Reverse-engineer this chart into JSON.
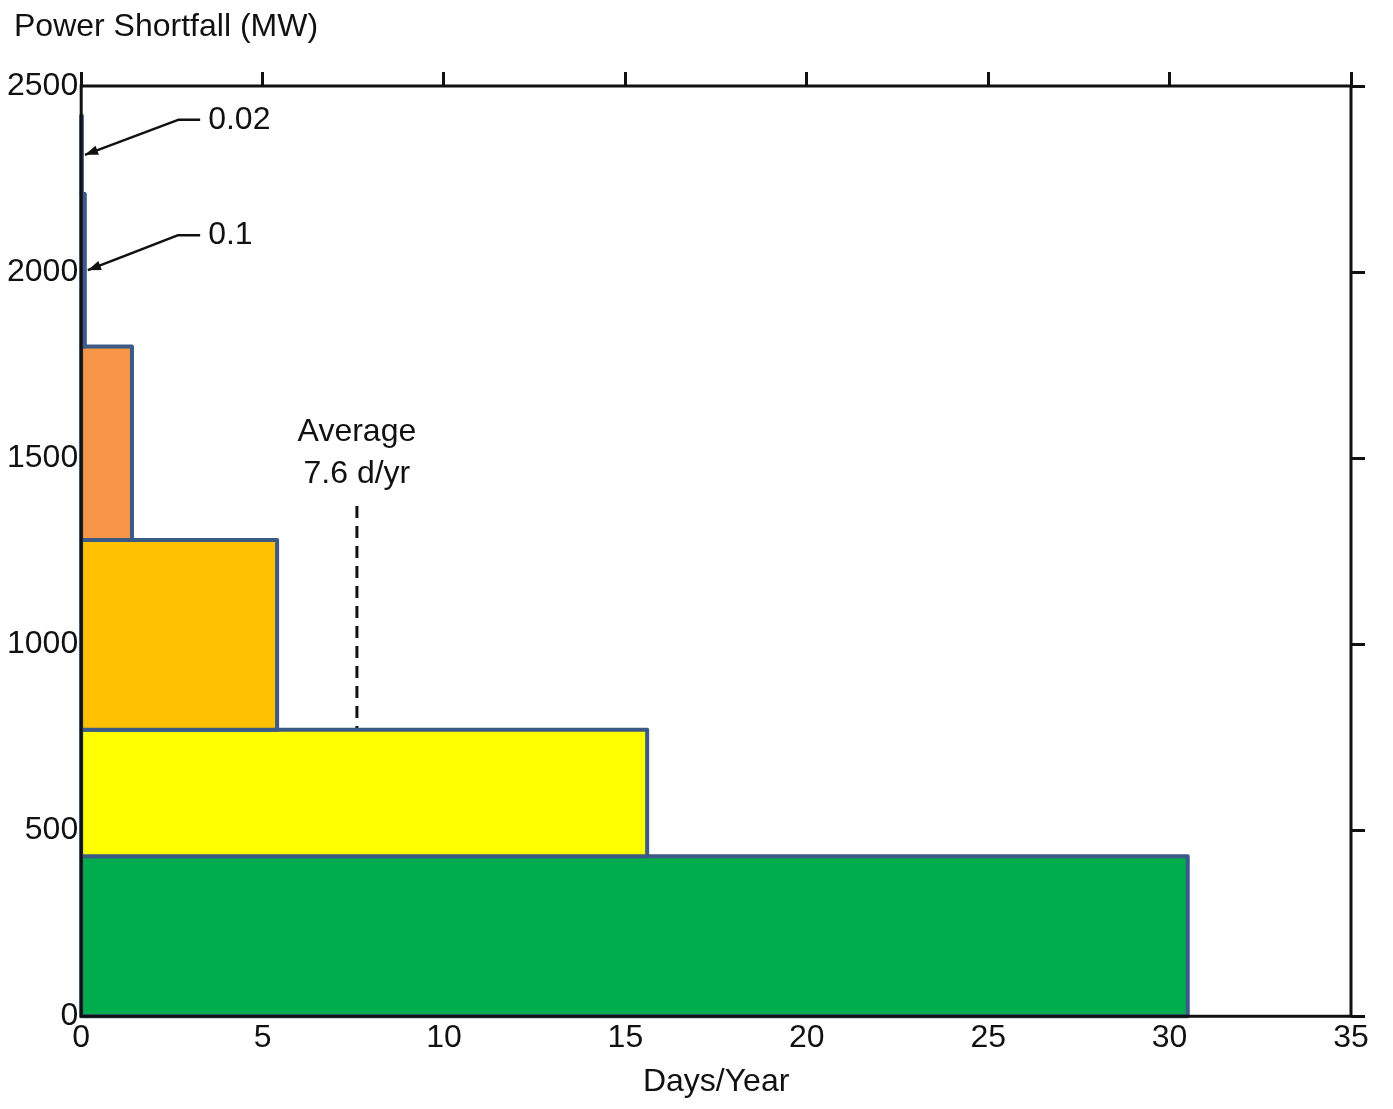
{
  "chart_data": {
    "type": "histogram",
    "orientation": "horizontal",
    "ylabel": "Power Shortfall (MW)",
    "xlabel": "Days/Year",
    "bins": [
      0,
      430,
      770,
      1280,
      1800,
      2210,
      2420
    ],
    "values": [
      30.5,
      15.6,
      5.4,
      1.4,
      0.1,
      0.02
    ],
    "colors": [
      "#00ad4e",
      "#ffff00",
      "#ffc000",
      "#f79646",
      "#e46c0a",
      "#ff0000"
    ],
    "value_labels": [
      null,
      null,
      null,
      null,
      "0.1",
      "0.02"
    ],
    "xlim": [
      0,
      35
    ],
    "xticks": [
      0,
      5,
      10,
      15,
      20,
      25,
      30,
      35
    ],
    "ylim": [
      0,
      2500
    ],
    "yticks": [
      0,
      500,
      1000,
      1500,
      2000,
      2500
    ],
    "ref_lines": [
      {
        "axis": "x",
        "value": 7.6,
        "label": "Average 7.6 d/yr",
        "line_style": "dashed"
      }
    ]
  }
}
